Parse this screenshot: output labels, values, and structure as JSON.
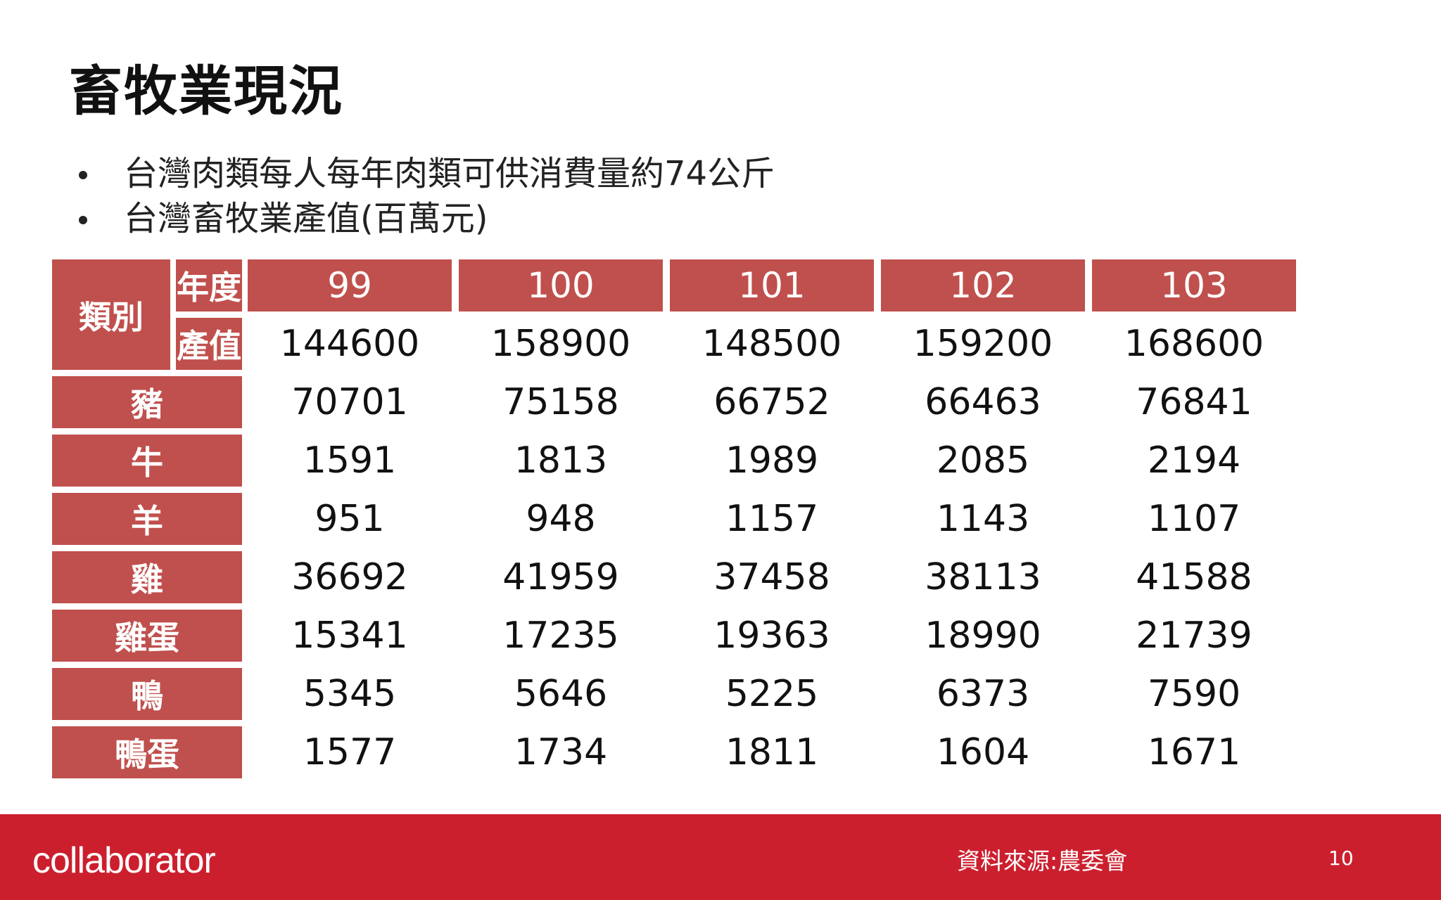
{
  "slide": {
    "title": "畜牧業現況",
    "bullets": [
      "台灣肉類每人每年肉類可供消費量約74公斤",
      "台灣畜牧業產值(百萬元)"
    ]
  },
  "table": {
    "header_corner": "類別",
    "header_year_label": "年度",
    "header_value_label": "產值",
    "years": [
      "99",
      "100",
      "101",
      "102",
      "103"
    ],
    "total_values": [
      "144600",
      "158900",
      "148500",
      "159200",
      "168600"
    ],
    "rows": [
      {
        "category": "豬",
        "values": [
          "70701",
          "75158",
          "66752",
          "66463",
          "76841"
        ]
      },
      {
        "category": "牛",
        "values": [
          "1591",
          "1813",
          "1989",
          "2085",
          "2194"
        ]
      },
      {
        "category": "羊",
        "values": [
          "951",
          "948",
          "1157",
          "1143",
          "1107"
        ]
      },
      {
        "category": "雞",
        "values": [
          "36692",
          "41959",
          "37458",
          "38113",
          "41588"
        ]
      },
      {
        "category": "雞蛋",
        "values": [
          "15341",
          "17235",
          "19363",
          "18990",
          "21739"
        ]
      },
      {
        "category": "鴨",
        "values": [
          "5345",
          "5646",
          "5225",
          "6373",
          "7590"
        ]
      },
      {
        "category": "鴨蛋",
        "values": [
          "1577",
          "1734",
          "1811",
          "1604",
          "1671"
        ]
      }
    ]
  },
  "footer": {
    "logo": "collaborator",
    "source": "資料來源:農委會",
    "page_number": "10"
  },
  "colors": {
    "header_fill": "#c0504d",
    "footer_band": "#cc1f2e",
    "text": "#111111"
  }
}
